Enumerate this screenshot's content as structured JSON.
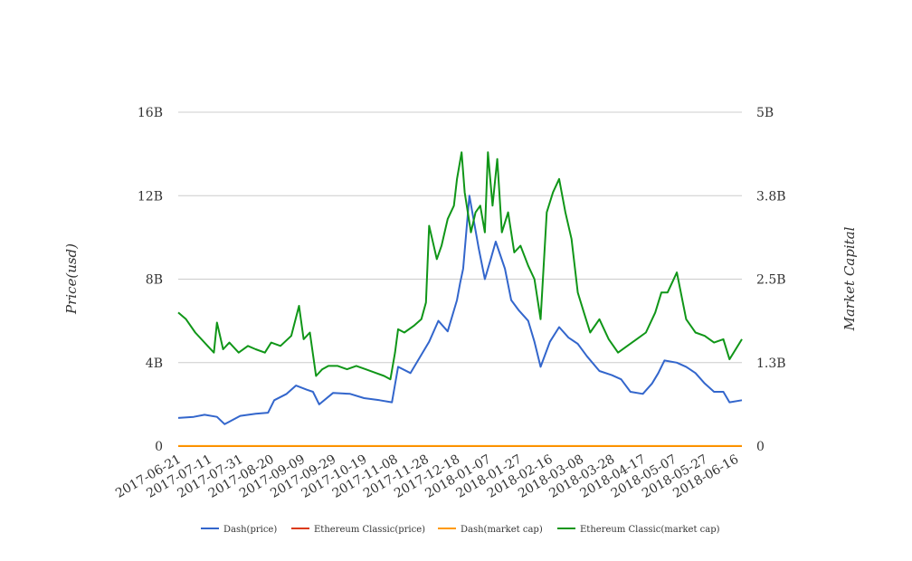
{
  "chart_data": {
    "type": "line",
    "title": "",
    "ylabel_left": "Price(usd)",
    "ylabel_right": "Market Capital",
    "x_ticks": [
      "2017-06-21",
      "2017-07-11",
      "2017-07-31",
      "2017-08-20",
      "2017-09-09",
      "2017-09-29",
      "2017-10-19",
      "2017-11-08",
      "2017-11-28",
      "2017-12-18",
      "2018-01-07",
      "2018-01-27",
      "2018-02-16",
      "2018-03-08",
      "2018-03-28",
      "2018-04-17",
      "2018-05-07",
      "2018-05-27",
      "2018-06-16"
    ],
    "x_range": [
      "2017-06-21",
      "2018-06-20"
    ],
    "y_left": {
      "min": 0,
      "max": 16000000000,
      "ticks": [
        0,
        4000000000,
        8000000000,
        12000000000,
        16000000000
      ],
      "tick_labels": [
        "0",
        "4B",
        "8B",
        "12B",
        "16B"
      ]
    },
    "y_right": {
      "min": 0,
      "max": 5000000000,
      "ticks": [
        0,
        1250000000,
        2500000000,
        3750000000,
        5000000000
      ],
      "tick_labels": [
        "0",
        "1.3B",
        "2.5B",
        "3.8B",
        "5B"
      ]
    },
    "grid": true,
    "legend_position": "bottom",
    "series": [
      {
        "name": "Dash(price)",
        "color": "#3366cc",
        "axis": "left",
        "x": [
          "2017-06-21",
          "2017-07-01",
          "2017-07-08",
          "2017-07-16",
          "2017-07-21",
          "2017-07-31",
          "2017-08-10",
          "2017-08-18",
          "2017-08-22",
          "2017-08-30",
          "2017-09-05",
          "2017-09-12",
          "2017-09-16",
          "2017-09-20",
          "2017-09-29",
          "2017-10-10",
          "2017-10-19",
          "2017-10-29",
          "2017-11-06",
          "2017-11-10",
          "2017-11-18",
          "2017-11-26",
          "2017-11-30",
          "2017-12-06",
          "2017-12-12",
          "2017-12-18",
          "2017-12-20",
          "2017-12-22",
          "2017-12-26",
          "2018-01-01",
          "2018-01-05",
          "2018-01-09",
          "2018-01-12",
          "2018-01-18",
          "2018-01-22",
          "2018-01-27",
          "2018-02-02",
          "2018-02-06",
          "2018-02-10",
          "2018-02-16",
          "2018-02-22",
          "2018-02-28",
          "2018-03-06",
          "2018-03-12",
          "2018-03-20",
          "2018-03-28",
          "2018-04-03",
          "2018-04-09",
          "2018-04-17",
          "2018-04-23",
          "2018-04-27",
          "2018-05-01",
          "2018-05-09",
          "2018-05-15",
          "2018-05-21",
          "2018-05-27",
          "2018-06-02",
          "2018-06-08",
          "2018-06-12",
          "2018-06-20"
        ],
        "y": [
          1350000000,
          1400000000,
          1500000000,
          1400000000,
          1050000000,
          1450000000,
          1550000000,
          1600000000,
          2200000000,
          2500000000,
          2900000000,
          2700000000,
          2600000000,
          2000000000,
          2550000000,
          2500000000,
          2300000000,
          2200000000,
          2100000000,
          3800000000,
          3500000000,
          4500000000,
          5000000000,
          6000000000,
          5500000000,
          7000000000,
          7800000000,
          8500000000,
          12000000000,
          9500000000,
          8000000000,
          9000000000,
          9800000000,
          8500000000,
          7000000000,
          6500000000,
          6000000000,
          5000000000,
          3800000000,
          5000000000,
          5700000000,
          5200000000,
          4900000000,
          4300000000,
          3600000000,
          3400000000,
          3200000000,
          2600000000,
          2500000000,
          3000000000,
          3500000000,
          4100000000,
          4000000000,
          3800000000,
          3500000000,
          3000000000,
          2600000000,
          2600000000,
          2100000000,
          2200000000
        ]
      },
      {
        "name": "Ethereum Classic(price)",
        "color": "#dc3912",
        "axis": "left",
        "x": [
          "2017-06-21",
          "2018-06-20"
        ],
        "y": [
          20,
          14
        ]
      },
      {
        "name": "Dash(market cap)",
        "color": "#ff9900",
        "axis": "right",
        "x": [
          "2017-06-21",
          "2018-06-20"
        ],
        "y": [
          2000000,
          1500000
        ]
      },
      {
        "name": "Ethereum Classic(market cap)",
        "color": "#109618",
        "axis": "right",
        "x": [
          "2017-06-21",
          "2017-06-26",
          "2017-07-02",
          "2017-07-10",
          "2017-07-14",
          "2017-07-16",
          "2017-07-20",
          "2017-07-24",
          "2017-07-30",
          "2017-08-05",
          "2017-08-10",
          "2017-08-16",
          "2017-08-20",
          "2017-08-26",
          "2017-09-02",
          "2017-09-07",
          "2017-09-10",
          "2017-09-14",
          "2017-09-18",
          "2017-09-22",
          "2017-09-26",
          "2017-10-02",
          "2017-10-08",
          "2017-10-14",
          "2017-10-20",
          "2017-10-26",
          "2017-11-01",
          "2017-11-05",
          "2017-11-08",
          "2017-11-10",
          "2017-11-14",
          "2017-11-20",
          "2017-11-25",
          "2017-11-28",
          "2017-11-30",
          "2017-12-02",
          "2017-12-05",
          "2017-12-08",
          "2017-12-12",
          "2017-12-16",
          "2017-12-18",
          "2017-12-21",
          "2017-12-23",
          "2017-12-27",
          "2017-12-30",
          "2018-01-02",
          "2018-01-05",
          "2018-01-07",
          "2018-01-10",
          "2018-01-13",
          "2018-01-16",
          "2018-01-20",
          "2018-01-24",
          "2018-01-28",
          "2018-02-02",
          "2018-02-06",
          "2018-02-10",
          "2018-02-14",
          "2018-02-18",
          "2018-02-22",
          "2018-02-26",
          "2018-03-02",
          "2018-03-06",
          "2018-03-10",
          "2018-03-14",
          "2018-03-20",
          "2018-03-26",
          "2018-04-01",
          "2018-04-07",
          "2018-04-13",
          "2018-04-19",
          "2018-04-25",
          "2018-04-29",
          "2018-05-03",
          "2018-05-09",
          "2018-05-15",
          "2018-05-21",
          "2018-05-27",
          "2018-06-02",
          "2018-06-08",
          "2018-06-12",
          "2018-06-20"
        ],
        "y": [
          2000000000,
          1900000000,
          1700000000,
          1500000000,
          1400000000,
          1850000000,
          1450000000,
          1550000000,
          1400000000,
          1500000000,
          1450000000,
          1400000000,
          1550000000,
          1500000000,
          1650000000,
          2100000000,
          1600000000,
          1700000000,
          1050000000,
          1150000000,
          1200000000,
          1200000000,
          1150000000,
          1200000000,
          1150000000,
          1100000000,
          1050000000,
          1000000000,
          1400000000,
          1750000000,
          1700000000,
          1800000000,
          1900000000,
          2150000000,
          3300000000,
          3100000000,
          2800000000,
          3000000000,
          3400000000,
          3600000000,
          4000000000,
          4400000000,
          3800000000,
          3200000000,
          3500000000,
          3600000000,
          3200000000,
          4400000000,
          3600000000,
          4300000000,
          3200000000,
          3500000000,
          2900000000,
          3000000000,
          2700000000,
          2500000000,
          1900000000,
          3500000000,
          3800000000,
          4000000000,
          3500000000,
          3100000000,
          2300000000,
          2000000000,
          1700000000,
          1900000000,
          1600000000,
          1400000000,
          1500000000,
          1600000000,
          1700000000,
          2000000000,
          2300000000,
          2300000000,
          2600000000,
          1900000000,
          1700000000,
          1650000000,
          1550000000,
          1600000000,
          1300000000,
          1600000000
        ]
      }
    ]
  }
}
